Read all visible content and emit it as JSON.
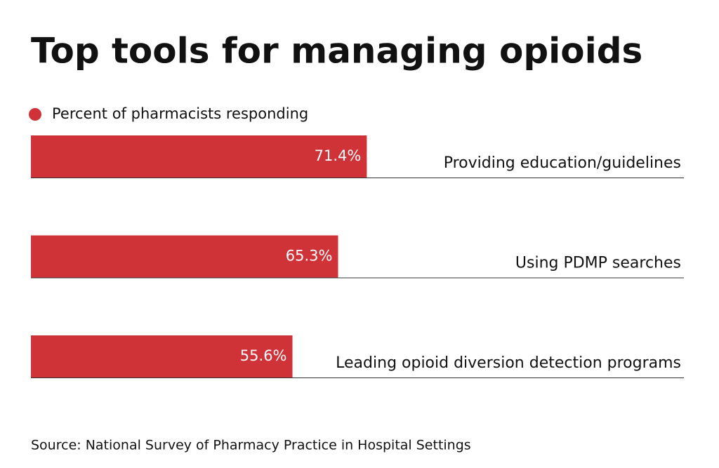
{
  "chart_data": {
    "type": "bar",
    "orientation": "horizontal",
    "title": "Top tools for managing opioids",
    "categories": [
      "Providing education/guidelines",
      "Using PDMP searches",
      "Leading opioid diversion detection programs"
    ],
    "series": [
      {
        "name": "Percent of pharmacists responding",
        "color": "#cf3237",
        "values": [
          71.4,
          65.3,
          55.6
        ],
        "value_labels": [
          "71.4%",
          "65.3%",
          "55.6%"
        ]
      }
    ],
    "source": "Source: National Survey of Pharmacy Practice in Hospital Settings"
  }
}
